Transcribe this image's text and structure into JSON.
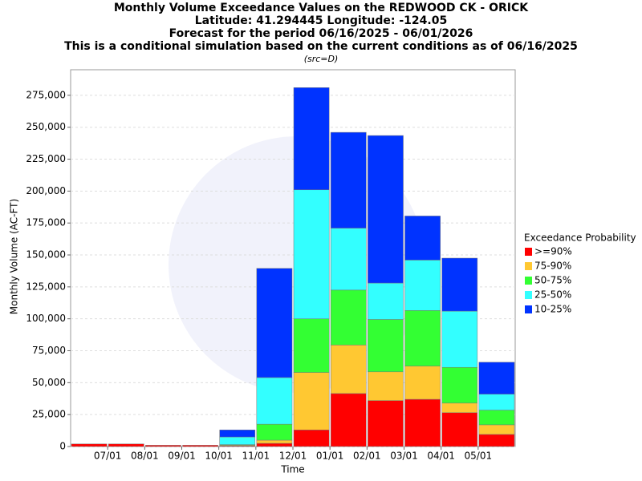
{
  "chart_data": {
    "type": "stacked-bar",
    "title": "Monthly Volume Exceedance Values on the REDWOOD CK - ORICK",
    "subtitle_lines": [
      "Latitude: 41.294445 Longitude: -124.05",
      "Forecast for the period 06/16/2025 - 06/01/2026",
      "This is a conditional simulation based on the current conditions as of 06/16/2025"
    ],
    "source_note": "(src=D)",
    "x_label": "Time",
    "y_label": "Monthly Volume (AC-FT)",
    "legend_title": "Exceedance Probability",
    "categories": [
      null,
      "07/01",
      "08/01",
      "09/01",
      "10/01",
      "11/01",
      "12/01",
      "01/01",
      "02/01",
      "03/01",
      "04/01",
      "05/01"
    ],
    "series": [
      {
        "name": ">=90%",
        "color": "#ff0000",
        "values": [
          2000,
          2000,
          1000,
          1000,
          500,
          2500,
          13000,
          41500,
          36000,
          37000,
          26500,
          9500
        ]
      },
      {
        "name": "75-90%",
        "color": "#ffc832",
        "values": [
          0,
          0,
          0,
          0,
          500,
          2500,
          45000,
          38000,
          22500,
          26000,
          7500,
          7500
        ]
      },
      {
        "name": "50-75%",
        "color": "#33ff33",
        "values": [
          0,
          0,
          0,
          0,
          500,
          12500,
          42000,
          43000,
          41000,
          43500,
          28000,
          11500
        ]
      },
      {
        "name": "25-50%",
        "color": "#33ffff",
        "values": [
          0,
          0,
          0,
          0,
          6000,
          36500,
          101000,
          48500,
          28500,
          39500,
          44000,
          12500
        ]
      },
      {
        "name": "10-25%",
        "color": "#0033ff",
        "values": [
          0,
          0,
          0,
          0,
          5500,
          85500,
          80000,
          75000,
          115500,
          34500,
          41500,
          25000
        ]
      }
    ],
    "ylim": [
      0,
      295000
    ],
    "yticks": [
      0,
      {
        "value": 25000,
        "label": "25,000"
      },
      {
        "value": 50000,
        "label": "50,000"
      },
      {
        "value": 75000,
        "label": "75,000"
      },
      {
        "value": 100000,
        "label": "100,000"
      },
      {
        "value": 125000,
        "label": "125,000"
      },
      {
        "value": 150000,
        "label": "150,000"
      },
      {
        "value": 175000,
        "label": "175,000"
      },
      {
        "value": 200000,
        "label": "200,000"
      },
      {
        "value": 225000,
        "label": "225,000"
      },
      {
        "value": 250000,
        "label": "250,000"
      },
      {
        "value": 275000,
        "label": "275,000"
      }
    ],
    "grid": true
  }
}
